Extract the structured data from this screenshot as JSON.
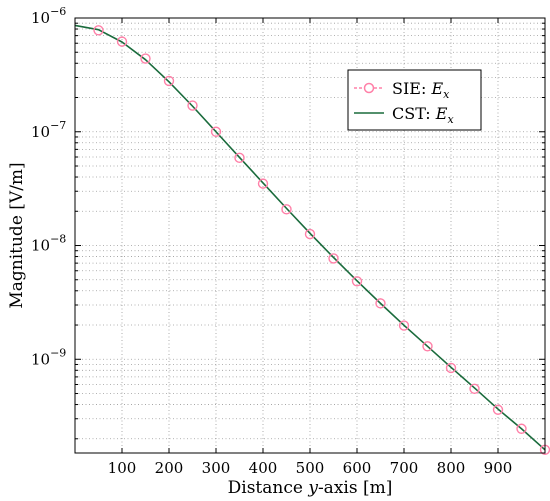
{
  "chart_data": {
    "type": "line",
    "title": "",
    "xlabel": {
      "prefix": "Distance ",
      "var": "y",
      "suffix": "-axis [m]"
    },
    "ylabel": "Magnitude [V/m]",
    "x_range": [
      0,
      1000
    ],
    "y_range": [
      1.5e-10,
      1e-06
    ],
    "y_scale": "log",
    "grid": true,
    "legend_position": "top-right",
    "x_ticks": [
      100,
      200,
      300,
      400,
      500,
      600,
      700,
      800,
      900
    ],
    "y_ticks": [
      {
        "value": 1e-06,
        "base": "10",
        "exp": "−6"
      },
      {
        "value": 1e-07,
        "base": "10",
        "exp": "−7"
      },
      {
        "value": 1e-08,
        "base": "10",
        "exp": "−8"
      },
      {
        "value": 1e-09,
        "base": "10",
        "exp": "−9"
      }
    ],
    "series": [
      {
        "name": {
          "main": "SIE: ",
          "var": "E",
          "sub": "x"
        },
        "style": "markers",
        "marker": "circle",
        "color": "#ff80a8",
        "x": [
          50,
          100,
          150,
          200,
          250,
          300,
          350,
          400,
          450,
          500,
          550,
          600,
          650,
          700,
          750,
          800,
          850,
          900,
          950,
          1000
        ],
        "y": [
          7.8e-07,
          6.2e-07,
          4.4e-07,
          2.8e-07,
          1.7e-07,
          1e-07,
          5.9e-08,
          3.5e-08,
          2.08e-08,
          1.26e-08,
          7.7e-09,
          4.85e-09,
          3.1e-09,
          1.98e-09,
          1.3e-09,
          8.4e-10,
          5.5e-10,
          3.6e-10,
          2.45e-10,
          1.6e-10
        ]
      },
      {
        "name": {
          "main": "CST: ",
          "var": "E",
          "sub": "x"
        },
        "style": "line",
        "color": "#1a6b3c",
        "x": [
          0,
          50,
          100,
          150,
          200,
          250,
          300,
          350,
          400,
          450,
          500,
          550,
          600,
          650,
          700,
          750,
          800,
          850,
          900,
          950,
          1000
        ],
        "y": [
          8.6e-07,
          7.9e-07,
          6.15e-07,
          4.3e-07,
          2.75e-07,
          1.68e-07,
          1e-07,
          5.95e-08,
          3.55e-08,
          2.12e-08,
          1.28e-08,
          7.85e-09,
          4.9e-09,
          3.1e-09,
          1.99e-09,
          1.3e-09,
          8.5e-10,
          5.6e-10,
          3.65e-10,
          2.45e-10,
          1.6e-10
        ]
      }
    ]
  }
}
